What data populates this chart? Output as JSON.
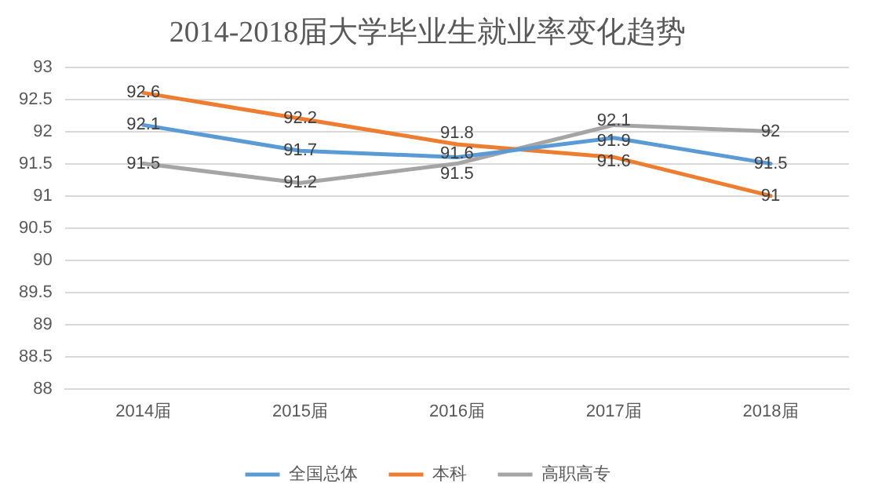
{
  "chart_data": {
    "type": "line",
    "title": "2014-2018届大学毕业生就业率变化趋势",
    "categories": [
      "2014届",
      "2015届",
      "2016届",
      "2017届",
      "2018届"
    ],
    "series": [
      {
        "name": "全国总体",
        "color": "#5b9bd5",
        "values": [
          92.1,
          91.7,
          91.6,
          91.9,
          91.5
        ]
      },
      {
        "name": "本科",
        "color": "#ed7d31",
        "values": [
          92.6,
          92.2,
          91.8,
          91.6,
          91
        ]
      },
      {
        "name": "高职高专",
        "color": "#a5a5a5",
        "values": [
          91.5,
          91.2,
          91.5,
          92.1,
          92
        ]
      }
    ],
    "ylim": [
      88,
      93
    ],
    "yticks": [
      88,
      88.5,
      89,
      89.5,
      90,
      90.5,
      91,
      91.5,
      92,
      92.5,
      93
    ],
    "grid": "y",
    "legend": "bottom",
    "data_labels": true,
    "marker": "none",
    "line_style": "solid"
  }
}
